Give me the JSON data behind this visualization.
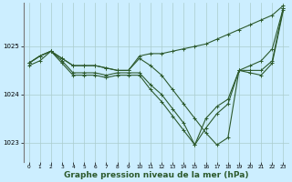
{
  "background_color": "#cceeff",
  "grid_color": "#aacccc",
  "line_color": "#2d5a2d",
  "marker_color": "#2d5a2d",
  "xlabel": "Graphe pression niveau de la mer (hPa)",
  "xlabel_fontsize": 6.5,
  "xlim": [
    -0.5,
    23.5
  ],
  "ylim": [
    1022.6,
    1025.9
  ],
  "yticks": [
    1023,
    1024,
    1025
  ],
  "xticks": [
    0,
    1,
    2,
    3,
    4,
    5,
    6,
    7,
    8,
    9,
    10,
    11,
    12,
    13,
    14,
    15,
    16,
    17,
    18,
    19,
    20,
    21,
    22,
    23
  ],
  "series": [
    [
      1024.65,
      1024.8,
      1024.9,
      1024.75,
      1024.6,
      1024.6,
      1024.6,
      1024.55,
      1024.5,
      1024.5,
      1024.8,
      1024.85,
      1024.85,
      1024.9,
      1024.95,
      1025.0,
      1025.05,
      1025.15,
      1025.25,
      1025.35,
      1025.45,
      1025.55,
      1025.65,
      1025.85
    ],
    [
      1024.65,
      1024.8,
      1024.9,
      1024.75,
      1024.6,
      1024.6,
      1024.6,
      1024.55,
      1024.5,
      1024.5,
      1024.75,
      1024.6,
      1024.4,
      1024.1,
      1023.8,
      1023.5,
      1023.2,
      1022.95,
      1023.1,
      1024.5,
      1024.6,
      1024.7,
      1024.95,
      1025.8
    ],
    [
      1024.65,
      1024.8,
      1024.9,
      1024.7,
      1024.45,
      1024.45,
      1024.45,
      1024.4,
      1024.45,
      1024.45,
      1024.45,
      1024.2,
      1024.0,
      1023.7,
      1023.4,
      1022.95,
      1023.5,
      1023.75,
      1023.9,
      1024.5,
      1024.5,
      1024.5,
      1024.7,
      1025.8
    ],
    [
      1024.6,
      1024.7,
      1024.9,
      1024.65,
      1024.4,
      1024.4,
      1024.4,
      1024.35,
      1024.4,
      1024.4,
      1024.4,
      1024.1,
      1023.85,
      1023.55,
      1023.25,
      1022.95,
      1023.3,
      1023.6,
      1023.8,
      1024.5,
      1024.45,
      1024.4,
      1024.65,
      1025.75
    ]
  ],
  "marker_size": 2.5,
  "line_width": 0.8
}
